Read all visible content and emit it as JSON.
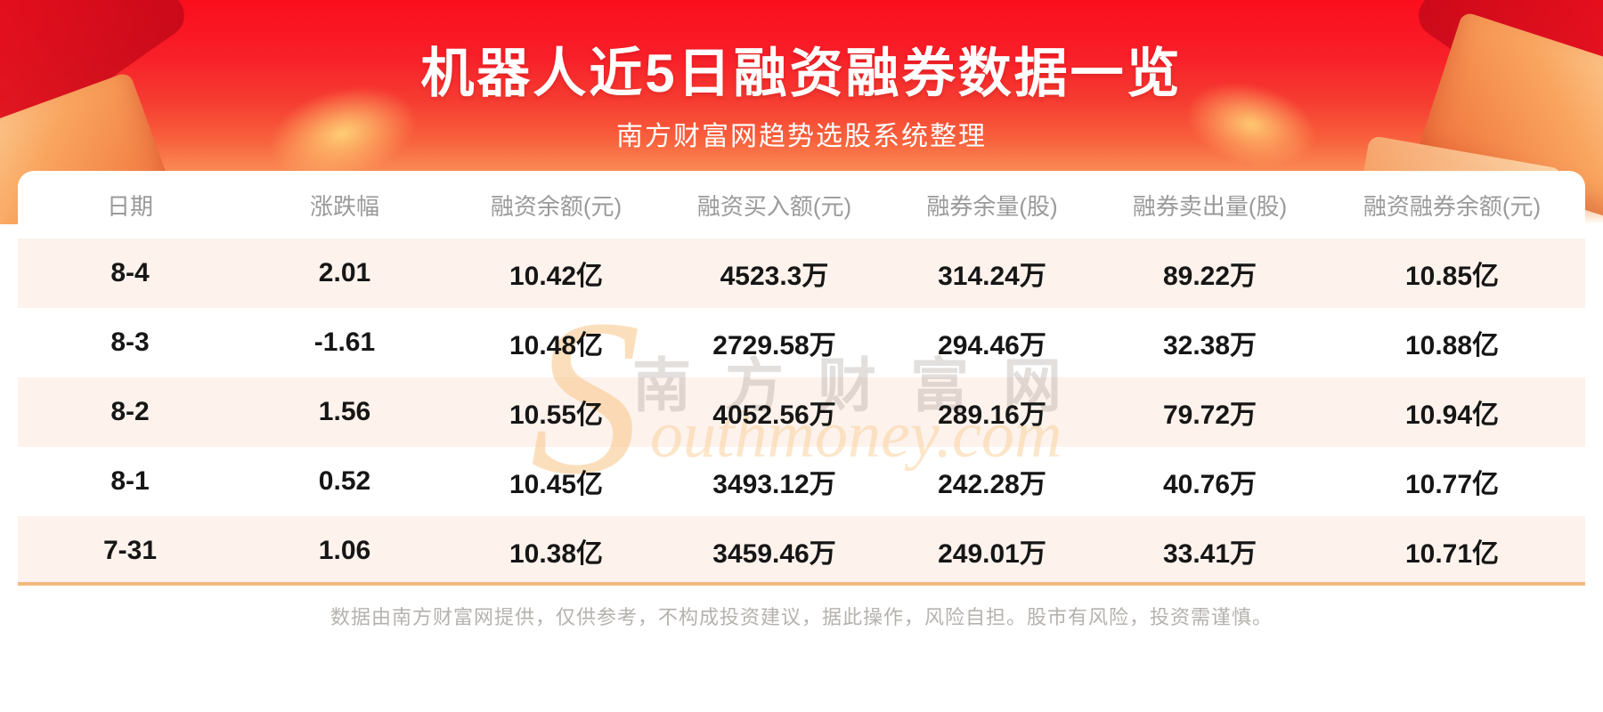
{
  "banner": {
    "title": "机器人近5日融资融券数据一览",
    "subtitle": "南方财富网趋势选股系统整理"
  },
  "chart_data": {
    "type": "table",
    "title": "机器人近5日融资融券数据一览",
    "columns": [
      "日期",
      "涨跌幅",
      "融资余额(元)",
      "融资买入额(元)",
      "融券余量(股)",
      "融券卖出量(股)",
      "融资融券余额(元)"
    ],
    "rows": [
      [
        "8-4",
        "2.01",
        "10.42亿",
        "4523.3万",
        "314.24万",
        "89.22万",
        "10.85亿"
      ],
      [
        "8-3",
        "-1.61",
        "10.48亿",
        "2729.58万",
        "294.46万",
        "32.38万",
        "10.88亿"
      ],
      [
        "8-2",
        "1.56",
        "10.55亿",
        "4052.56万",
        "289.16万",
        "79.72万",
        "10.94亿"
      ],
      [
        "8-1",
        "0.52",
        "10.45亿",
        "3493.12万",
        "242.28万",
        "40.76万",
        "10.77亿"
      ],
      [
        "7-31",
        "1.06",
        "10.38亿",
        "3459.46万",
        "249.01万",
        "33.41万",
        "10.71亿"
      ]
    ]
  },
  "watermark": {
    "cn": "南方财富网",
    "big_letter": "S",
    "rest": "outhmoney.com"
  },
  "footer": {
    "disclaimer": "数据由南方财富网提供，仅供参考，不构成投资建议，据此操作，风险自担。股市有风险，投资需谨慎。"
  },
  "colors": {
    "banner_red": "#fa1423",
    "row_alt_bg": "#fdf2ec",
    "card_border_bottom": "#f3b97d",
    "header_text": "#9a9a9a",
    "body_text": "#161616",
    "watermark_gold": "#f7c486",
    "disclaimer_text": "#b5b2ae"
  }
}
